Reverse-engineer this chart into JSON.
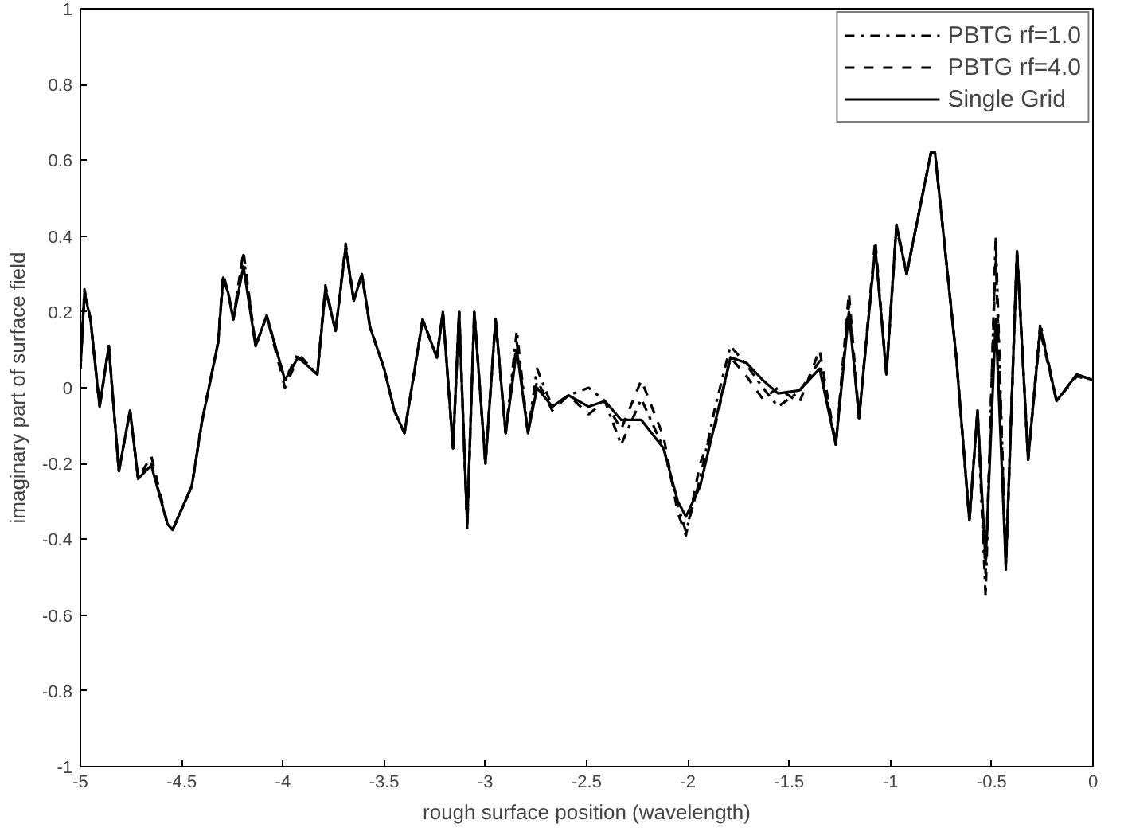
{
  "chart_data": {
    "type": "line",
    "xlabel": "rough surface position (wavelength)",
    "ylabel": "imaginary part of surface field",
    "x": [
      -5.0,
      -4.98,
      -4.95,
      -4.905,
      -4.86,
      -4.81,
      -4.755,
      -4.715,
      -4.65,
      -4.57,
      -4.545,
      -4.45,
      -4.4,
      -4.32,
      -4.295,
      -4.27,
      -4.245,
      -4.195,
      -4.135,
      -4.08,
      -3.99,
      -3.925,
      -3.83,
      -3.79,
      -3.74,
      -3.69,
      -3.65,
      -3.61,
      -3.57,
      -3.5,
      -3.45,
      -3.4,
      -3.31,
      -3.24,
      -3.21,
      -3.16,
      -3.13,
      -3.09,
      -3.055,
      -3.0,
      -2.95,
      -2.9,
      -2.845,
      -2.79,
      -2.745,
      -2.67,
      -2.59,
      -2.49,
      -2.41,
      -2.33,
      -2.23,
      -2.12,
      -2.05,
      -2.01,
      -1.94,
      -1.865,
      -1.79,
      -1.71,
      -1.63,
      -1.555,
      -1.45,
      -1.35,
      -1.27,
      -1.205,
      -1.155,
      -1.075,
      -1.02,
      -0.97,
      -0.92,
      -0.8,
      -0.78,
      -0.675,
      -0.61,
      -0.57,
      -0.53,
      -0.48,
      -0.43,
      -0.375,
      -0.32,
      -0.26,
      -0.18,
      -0.08,
      0.0
    ],
    "series": [
      {
        "name": "PBTG rf=1.0",
        "color": "#000000",
        "line_style": "dashdot",
        "values": [
          0.05,
          0.26,
          0.18,
          -0.05,
          0.11,
          -0.22,
          -0.06,
          -0.24,
          -0.2,
          -0.36,
          -0.375,
          -0.26,
          -0.09,
          0.12,
          0.29,
          0.25,
          0.18,
          0.35,
          0.11,
          0.19,
          0.02,
          0.09,
          0.035,
          0.26,
          0.15,
          0.37,
          0.23,
          0.3,
          0.16,
          0.05,
          -0.06,
          -0.12,
          0.18,
          0.08,
          0.2,
          -0.16,
          0.2,
          -0.36,
          0.2,
          -0.2,
          0.18,
          -0.12,
          0.15,
          -0.12,
          0.05,
          -0.05,
          -0.02,
          0.0,
          -0.035,
          -0.15,
          -0.03,
          -0.16,
          -0.31,
          -0.38,
          -0.24,
          -0.05,
          0.11,
          0.06,
          0.0,
          -0.05,
          -0.01,
          0.07,
          -0.15,
          0.22,
          -0.08,
          0.37,
          0.035,
          0.43,
          0.3,
          0.62,
          0.62,
          0.08,
          -0.35,
          -0.06,
          -0.55,
          0.4,
          -0.47,
          0.36,
          -0.19,
          0.17,
          -0.035,
          0.035,
          0.02
        ]
      },
      {
        "name": "PBTG rf=4.0",
        "color": "#000000",
        "line_style": "dashed",
        "values": [
          0.05,
          0.25,
          0.18,
          -0.05,
          0.11,
          -0.22,
          -0.06,
          -0.24,
          -0.18,
          -0.36,
          -0.375,
          -0.26,
          -0.09,
          0.12,
          0.3,
          0.25,
          0.18,
          0.36,
          0.11,
          0.19,
          0.0,
          0.08,
          0.035,
          0.27,
          0.15,
          0.38,
          0.23,
          0.3,
          0.16,
          0.05,
          -0.06,
          -0.12,
          0.18,
          0.08,
          0.2,
          -0.16,
          0.2,
          -0.37,
          0.2,
          -0.2,
          0.18,
          -0.12,
          0.12,
          -0.12,
          0.02,
          -0.06,
          -0.02,
          -0.07,
          -0.035,
          -0.11,
          0.02,
          -0.13,
          -0.33,
          -0.39,
          -0.2,
          -0.1,
          0.08,
          0.03,
          -0.03,
          0.0,
          -0.04,
          0.1,
          -0.15,
          0.25,
          -0.08,
          0.39,
          0.035,
          0.42,
          0.3,
          0.62,
          0.62,
          0.08,
          -0.35,
          -0.06,
          -0.49,
          0.35,
          -0.48,
          0.36,
          -0.19,
          0.15,
          -0.035,
          0.03,
          0.02
        ]
      },
      {
        "name": "Single Grid",
        "color": "#000000",
        "line_style": "solid",
        "values": [
          0.05,
          0.25,
          0.18,
          -0.05,
          0.11,
          -0.22,
          -0.06,
          -0.24,
          -0.205,
          -0.36,
          -0.375,
          -0.26,
          -0.09,
          0.12,
          0.29,
          0.25,
          0.18,
          0.32,
          0.11,
          0.19,
          0.02,
          0.08,
          0.035,
          0.26,
          0.15,
          0.37,
          0.23,
          0.3,
          0.16,
          0.05,
          -0.06,
          -0.12,
          0.18,
          0.08,
          0.2,
          -0.16,
          0.2,
          -0.36,
          0.2,
          -0.2,
          0.18,
          -0.12,
          0.1,
          -0.12,
          0.0,
          -0.05,
          -0.02,
          -0.05,
          -0.035,
          -0.085,
          -0.085,
          -0.16,
          -0.3,
          -0.34,
          -0.26,
          -0.09,
          0.08,
          0.065,
          0.02,
          -0.015,
          -0.007,
          0.05,
          -0.15,
          0.2,
          -0.08,
          0.37,
          0.035,
          0.43,
          0.3,
          0.62,
          0.62,
          0.08,
          -0.35,
          -0.06,
          -0.46,
          0.18,
          -0.47,
          0.36,
          -0.19,
          0.16,
          -0.035,
          0.035,
          0.02
        ]
      }
    ],
    "xlim": [
      -5,
      0
    ],
    "ylim": [
      -1,
      1
    ],
    "xticks": [
      -5,
      -4.5,
      -4,
      -3.5,
      -3,
      -2.5,
      -2,
      -1.5,
      -1,
      -0.5,
      0
    ],
    "yticks": [
      -1,
      -0.8,
      -0.6,
      -0.4,
      -0.2,
      0,
      0.2,
      0.4,
      0.6,
      0.8,
      1
    ],
    "grid": false,
    "legend": "top right"
  }
}
